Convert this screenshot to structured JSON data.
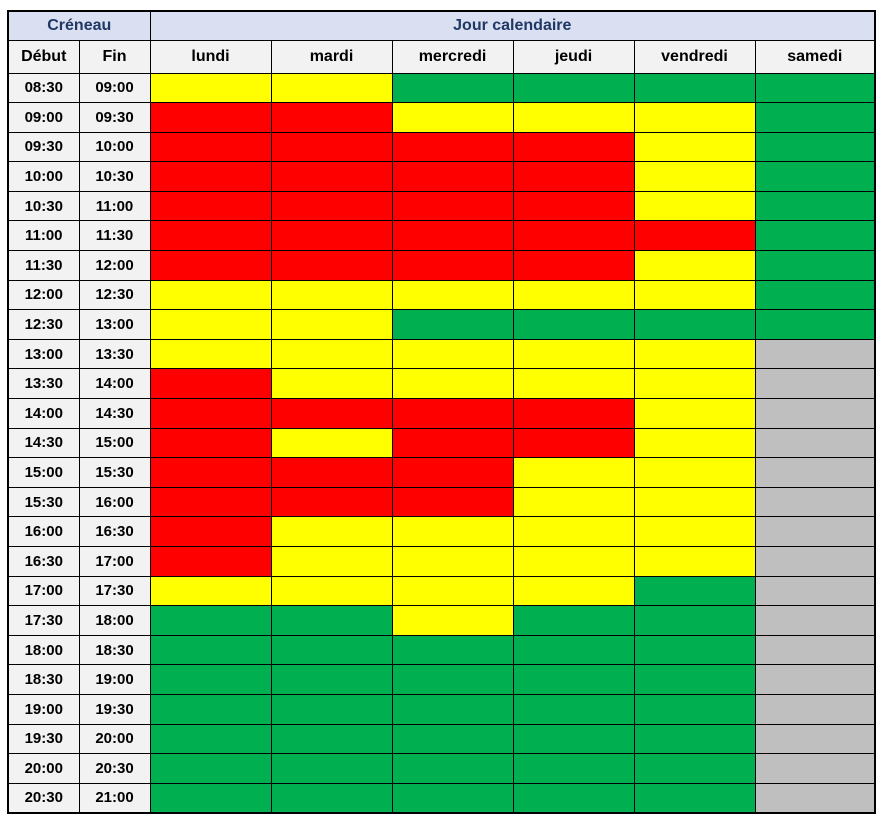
{
  "chart_data": {
    "type": "heatmap",
    "title": "",
    "corner_header": "Créneau",
    "top_header": "Jour calendaire",
    "row_headers": {
      "debut": "Début",
      "fin": "Fin"
    },
    "columns": [
      "lundi",
      "mardi",
      "mercredi",
      "jeudi",
      "vendredi",
      "samedi"
    ],
    "cell_colors": {
      "red": "#ff0000",
      "yellow": "#ffff00",
      "green": "#00b050",
      "gray": "#bfbfbf"
    },
    "style_colors": {
      "group_header_bg": "#dbdff2",
      "group_header_text": "#1f3864",
      "subheader_bg": "#f2f2f2",
      "border": "#000000"
    },
    "grid": true,
    "legend_position": "none",
    "rows": [
      {
        "debut": "08:30",
        "fin": "09:00",
        "cells": [
          "yellow",
          "yellow",
          "green",
          "green",
          "green",
          "green"
        ]
      },
      {
        "debut": "09:00",
        "fin": "09:30",
        "cells": [
          "red",
          "red",
          "yellow",
          "yellow",
          "yellow",
          "green"
        ]
      },
      {
        "debut": "09:30",
        "fin": "10:00",
        "cells": [
          "red",
          "red",
          "red",
          "red",
          "yellow",
          "green"
        ]
      },
      {
        "debut": "10:00",
        "fin": "10:30",
        "cells": [
          "red",
          "red",
          "red",
          "red",
          "yellow",
          "green"
        ]
      },
      {
        "debut": "10:30",
        "fin": "11:00",
        "cells": [
          "red",
          "red",
          "red",
          "red",
          "yellow",
          "green"
        ]
      },
      {
        "debut": "11:00",
        "fin": "11:30",
        "cells": [
          "red",
          "red",
          "red",
          "red",
          "red",
          "green"
        ]
      },
      {
        "debut": "11:30",
        "fin": "12:00",
        "cells": [
          "red",
          "red",
          "red",
          "red",
          "yellow",
          "green"
        ]
      },
      {
        "debut": "12:00",
        "fin": "12:30",
        "cells": [
          "yellow",
          "yellow",
          "yellow",
          "yellow",
          "yellow",
          "green"
        ]
      },
      {
        "debut": "12:30",
        "fin": "13:00",
        "cells": [
          "yellow",
          "yellow",
          "green",
          "green",
          "green",
          "green"
        ]
      },
      {
        "debut": "13:00",
        "fin": "13:30",
        "cells": [
          "yellow",
          "yellow",
          "yellow",
          "yellow",
          "yellow",
          "gray"
        ]
      },
      {
        "debut": "13:30",
        "fin": "14:00",
        "cells": [
          "red",
          "yellow",
          "yellow",
          "yellow",
          "yellow",
          "gray"
        ]
      },
      {
        "debut": "14:00",
        "fin": "14:30",
        "cells": [
          "red",
          "red",
          "red",
          "red",
          "yellow",
          "gray"
        ]
      },
      {
        "debut": "14:30",
        "fin": "15:00",
        "cells": [
          "red",
          "yellow",
          "red",
          "red",
          "yellow",
          "gray"
        ]
      },
      {
        "debut": "15:00",
        "fin": "15:30",
        "cells": [
          "red",
          "red",
          "red",
          "yellow",
          "yellow",
          "gray"
        ]
      },
      {
        "debut": "15:30",
        "fin": "16:00",
        "cells": [
          "red",
          "red",
          "red",
          "yellow",
          "yellow",
          "gray"
        ]
      },
      {
        "debut": "16:00",
        "fin": "16:30",
        "cells": [
          "red",
          "yellow",
          "yellow",
          "yellow",
          "yellow",
          "gray"
        ]
      },
      {
        "debut": "16:30",
        "fin": "17:00",
        "cells": [
          "red",
          "yellow",
          "yellow",
          "yellow",
          "yellow",
          "gray"
        ]
      },
      {
        "debut": "17:00",
        "fin": "17:30",
        "cells": [
          "yellow",
          "yellow",
          "yellow",
          "yellow",
          "green",
          "gray"
        ]
      },
      {
        "debut": "17:30",
        "fin": "18:00",
        "cells": [
          "green",
          "green",
          "yellow",
          "green",
          "green",
          "gray"
        ]
      },
      {
        "debut": "18:00",
        "fin": "18:30",
        "cells": [
          "green",
          "green",
          "green",
          "green",
          "green",
          "gray"
        ]
      },
      {
        "debut": "18:30",
        "fin": "19:00",
        "cells": [
          "green",
          "green",
          "green",
          "green",
          "green",
          "gray"
        ]
      },
      {
        "debut": "19:00",
        "fin": "19:30",
        "cells": [
          "green",
          "green",
          "green",
          "green",
          "green",
          "gray"
        ]
      },
      {
        "debut": "19:30",
        "fin": "20:00",
        "cells": [
          "green",
          "green",
          "green",
          "green",
          "green",
          "gray"
        ]
      },
      {
        "debut": "20:00",
        "fin": "20:30",
        "cells": [
          "green",
          "green",
          "green",
          "green",
          "green",
          "gray"
        ]
      },
      {
        "debut": "20:30",
        "fin": "21:00",
        "cells": [
          "green",
          "green",
          "green",
          "green",
          "green",
          "gray"
        ]
      }
    ]
  }
}
